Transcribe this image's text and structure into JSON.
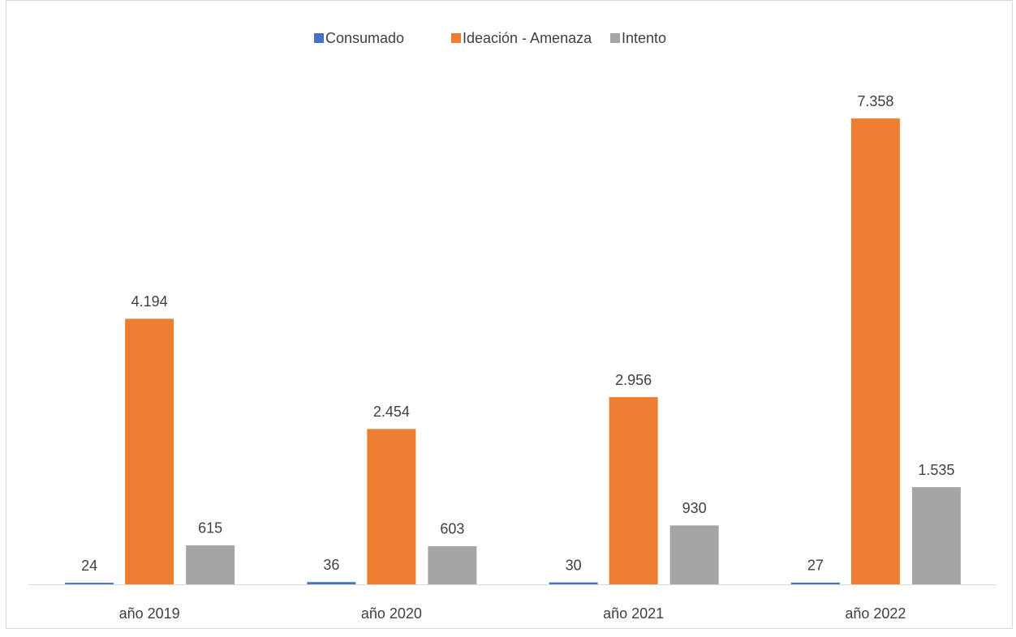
{
  "chart_data": {
    "type": "bar",
    "categories": [
      "año 2019",
      "año 2020",
      "año 2021",
      "año 2022"
    ],
    "series": [
      {
        "name": "Consumado",
        "color": "#4472c4",
        "values": [
          24,
          36,
          30,
          27
        ]
      },
      {
        "name": "Ideación - Amenaza",
        "color": "#ed7d31",
        "values": [
          4194,
          2454,
          2956,
          7358
        ],
        "value_labels": [
          "4.194",
          "2.454",
          "2.956",
          "7.358"
        ]
      },
      {
        "name": "Intento",
        "color": "#a5a5a5",
        "values": [
          615,
          603,
          930,
          1535
        ],
        "value_labels": [
          "615",
          "603",
          "930",
          "1.535"
        ]
      }
    ],
    "ylim": [
      0,
      8000
    ],
    "legend": "top"
  }
}
